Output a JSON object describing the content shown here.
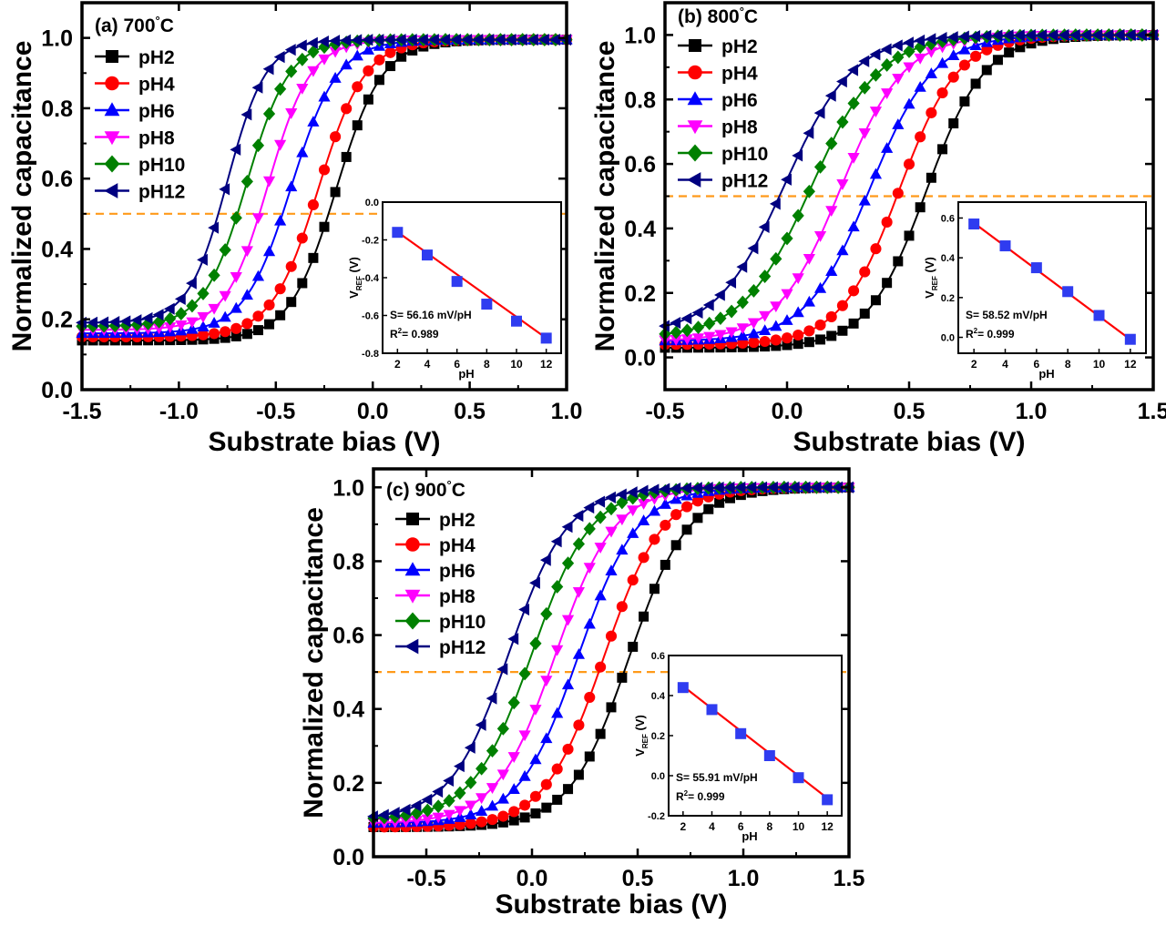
{
  "chart_data": [
    {
      "type": "line",
      "panel_label": "(a) 700",
      "temperature_unit": "°C",
      "xlabel": "Substrate bias (V)",
      "ylabel": "Normalized capacitance",
      "xlim": [
        -1.5,
        1.0
      ],
      "ylim": [
        0.0,
        1.1
      ],
      "xticks": [
        -1.5,
        -1.0,
        -0.5,
        0.0,
        0.5,
        1.0
      ],
      "yticks": [
        0.0,
        0.2,
        0.4,
        0.6,
        0.8,
        1.0
      ],
      "reference_line": 0.5,
      "legend_position": "top-left",
      "series": [
        {
          "name": "pH2",
          "color": "#000000",
          "marker": "square",
          "midpoint": -0.19,
          "low": 0.14,
          "high": 0.995,
          "width": 0.12
        },
        {
          "name": "pH4",
          "color": "#ff0000",
          "marker": "circle",
          "midpoint": -0.28,
          "low": 0.15,
          "high": 0.995,
          "width": 0.12
        },
        {
          "name": "pH6",
          "color": "#0000ff",
          "marker": "triangle-up",
          "midpoint": -0.42,
          "low": 0.16,
          "high": 0.995,
          "width": 0.12
        },
        {
          "name": "pH8",
          "color": "#ff00ff",
          "marker": "triangle-down",
          "midpoint": -0.54,
          "low": 0.17,
          "high": 0.995,
          "width": 0.11
        },
        {
          "name": "pH10",
          "color": "#008000",
          "marker": "diamond",
          "midpoint": -0.65,
          "low": 0.18,
          "high": 0.995,
          "width": 0.11
        },
        {
          "name": "pH12",
          "color": "#000080",
          "marker": "triangle-left",
          "midpoint": -0.75,
          "low": 0.19,
          "high": 0.995,
          "width": 0.1
        }
      ],
      "inset": {
        "type": "scatter",
        "xlabel": "pH",
        "ylabel": "V",
        "ylabel_sub": "REF",
        "ylabel_unit": " (V)",
        "xlim": [
          1,
          13
        ],
        "ylim": [
          -0.8,
          0.0
        ],
        "xticks": [
          2,
          4,
          6,
          8,
          10,
          12
        ],
        "yticks": [
          -0.8,
          -0.6,
          -0.4,
          -0.2,
          0.0
        ],
        "x": [
          2,
          4,
          6,
          8,
          10,
          12
        ],
        "y": [
          -0.16,
          -0.28,
          -0.42,
          -0.54,
          -0.63,
          -0.72
        ],
        "fit": [
          [
            2,
            -0.158
          ],
          [
            12,
            -0.72
          ]
        ],
        "slope_text": "S= 56.16 mV/pH",
        "r2_label": "R",
        "r2_value": "= 0.989"
      }
    },
    {
      "type": "line",
      "panel_label": "(b) 800",
      "temperature_unit": "°C",
      "xlabel": "Substrate bias (V)",
      "ylabel": "Normalized capacitance",
      "xlim": [
        -0.5,
        1.5
      ],
      "ylim": [
        -0.1,
        1.1
      ],
      "xticks": [
        -0.5,
        0.0,
        0.5,
        1.0,
        1.5
      ],
      "yticks": [
        0.0,
        0.2,
        0.4,
        0.6,
        0.8,
        1.0
      ],
      "reference_line": 0.5,
      "legend_position": "top-left",
      "series": [
        {
          "name": "pH2",
          "color": "#000000",
          "marker": "square",
          "midpoint": 0.57,
          "low": 0.03,
          "high": 1.0,
          "width": 0.12
        },
        {
          "name": "pH4",
          "color": "#ff0000",
          "marker": "circle",
          "midpoint": 0.46,
          "low": 0.04,
          "high": 1.0,
          "width": 0.12
        },
        {
          "name": "pH6",
          "color": "#0000ff",
          "marker": "triangle-up",
          "midpoint": 0.34,
          "low": 0.05,
          "high": 1.0,
          "width": 0.13
        },
        {
          "name": "pH8",
          "color": "#ff00ff",
          "marker": "triangle-down",
          "midpoint": 0.22,
          "low": 0.05,
          "high": 1.0,
          "width": 0.13
        },
        {
          "name": "pH10",
          "color": "#008000",
          "marker": "diamond",
          "midpoint": 0.1,
          "low": 0.06,
          "high": 1.0,
          "width": 0.14
        },
        {
          "name": "pH12",
          "color": "#000080",
          "marker": "triangle-left",
          "midpoint": -0.01,
          "low": 0.07,
          "high": 1.0,
          "width": 0.14
        }
      ],
      "inset": {
        "type": "scatter",
        "xlabel": "pH",
        "ylabel": "V",
        "ylabel_sub": "REF",
        "ylabel_unit": " (V)",
        "xlim": [
          1,
          13
        ],
        "ylim": [
          -0.08,
          0.68
        ],
        "xticks": [
          2,
          4,
          6,
          8,
          10,
          12
        ],
        "yticks": [
          0.0,
          0.2,
          0.4,
          0.6
        ],
        "x": [
          2,
          4,
          6,
          8,
          10,
          12
        ],
        "y": [
          0.57,
          0.46,
          0.35,
          0.23,
          0.11,
          -0.01
        ],
        "fit": [
          [
            2,
            0.575
          ],
          [
            12,
            -0.011
          ]
        ],
        "slope_text": "S= 58.52 mV/pH",
        "r2_label": "R",
        "r2_value": "= 0.999"
      }
    },
    {
      "type": "line",
      "panel_label": "(c) 900",
      "temperature_unit": "°C",
      "xlabel": "Substrate bias (V)",
      "ylabel": "Normalized capacitance",
      "xlim": [
        -0.75,
        1.5
      ],
      "ylim": [
        0.0,
        1.05
      ],
      "xticks": [
        -0.5,
        0.0,
        0.5,
        1.0,
        1.5
      ],
      "yticks": [
        0.0,
        0.2,
        0.4,
        0.6,
        0.8,
        1.0
      ],
      "reference_line": 0.5,
      "legend_position": "top-left",
      "series": [
        {
          "name": "pH2",
          "color": "#000000",
          "marker": "square",
          "midpoint": 0.46,
          "low": 0.08,
          "high": 1.0,
          "width": 0.14
        },
        {
          "name": "pH4",
          "color": "#ff0000",
          "marker": "circle",
          "midpoint": 0.34,
          "low": 0.08,
          "high": 1.0,
          "width": 0.14
        },
        {
          "name": "pH6",
          "color": "#0000ff",
          "marker": "triangle-up",
          "midpoint": 0.22,
          "low": 0.09,
          "high": 1.0,
          "width": 0.14
        },
        {
          "name": "pH8",
          "color": "#ff00ff",
          "marker": "triangle-down",
          "midpoint": 0.11,
          "low": 0.09,
          "high": 1.0,
          "width": 0.14
        },
        {
          "name": "pH10",
          "color": "#008000",
          "marker": "diamond",
          "midpoint": 0.0,
          "low": 0.1,
          "high": 1.0,
          "width": 0.14
        },
        {
          "name": "pH12",
          "color": "#000080",
          "marker": "triangle-left",
          "midpoint": -0.11,
          "low": 0.1,
          "high": 1.0,
          "width": 0.14
        }
      ],
      "inset": {
        "type": "scatter",
        "xlabel": "pH",
        "ylabel": "V",
        "ylabel_sub": "REF",
        "ylabel_unit": " (V)",
        "xlim": [
          1,
          13
        ],
        "ylim": [
          -0.2,
          0.6
        ],
        "xticks": [
          2,
          4,
          6,
          8,
          10,
          12
        ],
        "yticks": [
          -0.2,
          0.0,
          0.2,
          0.4,
          0.6
        ],
        "x": [
          2,
          4,
          6,
          8,
          10,
          12
        ],
        "y": [
          0.44,
          0.33,
          0.21,
          0.1,
          -0.01,
          -0.12
        ],
        "fit": [
          [
            2,
            0.447
          ],
          [
            12,
            -0.112
          ]
        ],
        "slope_text": "S= 55.91 mV/pH",
        "r2_label": "R",
        "r2_value": "= 0.999"
      }
    }
  ]
}
